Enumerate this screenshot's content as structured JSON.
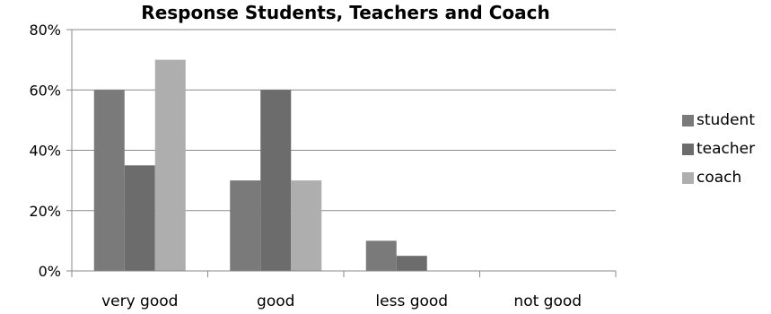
{
  "chart_data": {
    "type": "bar",
    "title": "Response Students, Teachers and Coach",
    "xlabel": "",
    "ylabel": "",
    "categories": [
      "very good",
      "good",
      "less good",
      "not good"
    ],
    "series": [
      {
        "name": "student",
        "values": [
          60,
          30,
          10,
          0
        ],
        "color": "#7a7a7a"
      },
      {
        "name": "teacher",
        "values": [
          35,
          60,
          5,
          0
        ],
        "color": "#6c6c6c"
      },
      {
        "name": "coach",
        "values": [
          70,
          30,
          0,
          0
        ],
        "color": "#aeaeae"
      }
    ],
    "ylim": [
      0,
      80
    ],
    "yticks": [
      "0%",
      "20%",
      "40%",
      "60%",
      "80%"
    ],
    "grid": true,
    "legend_position": "right"
  }
}
